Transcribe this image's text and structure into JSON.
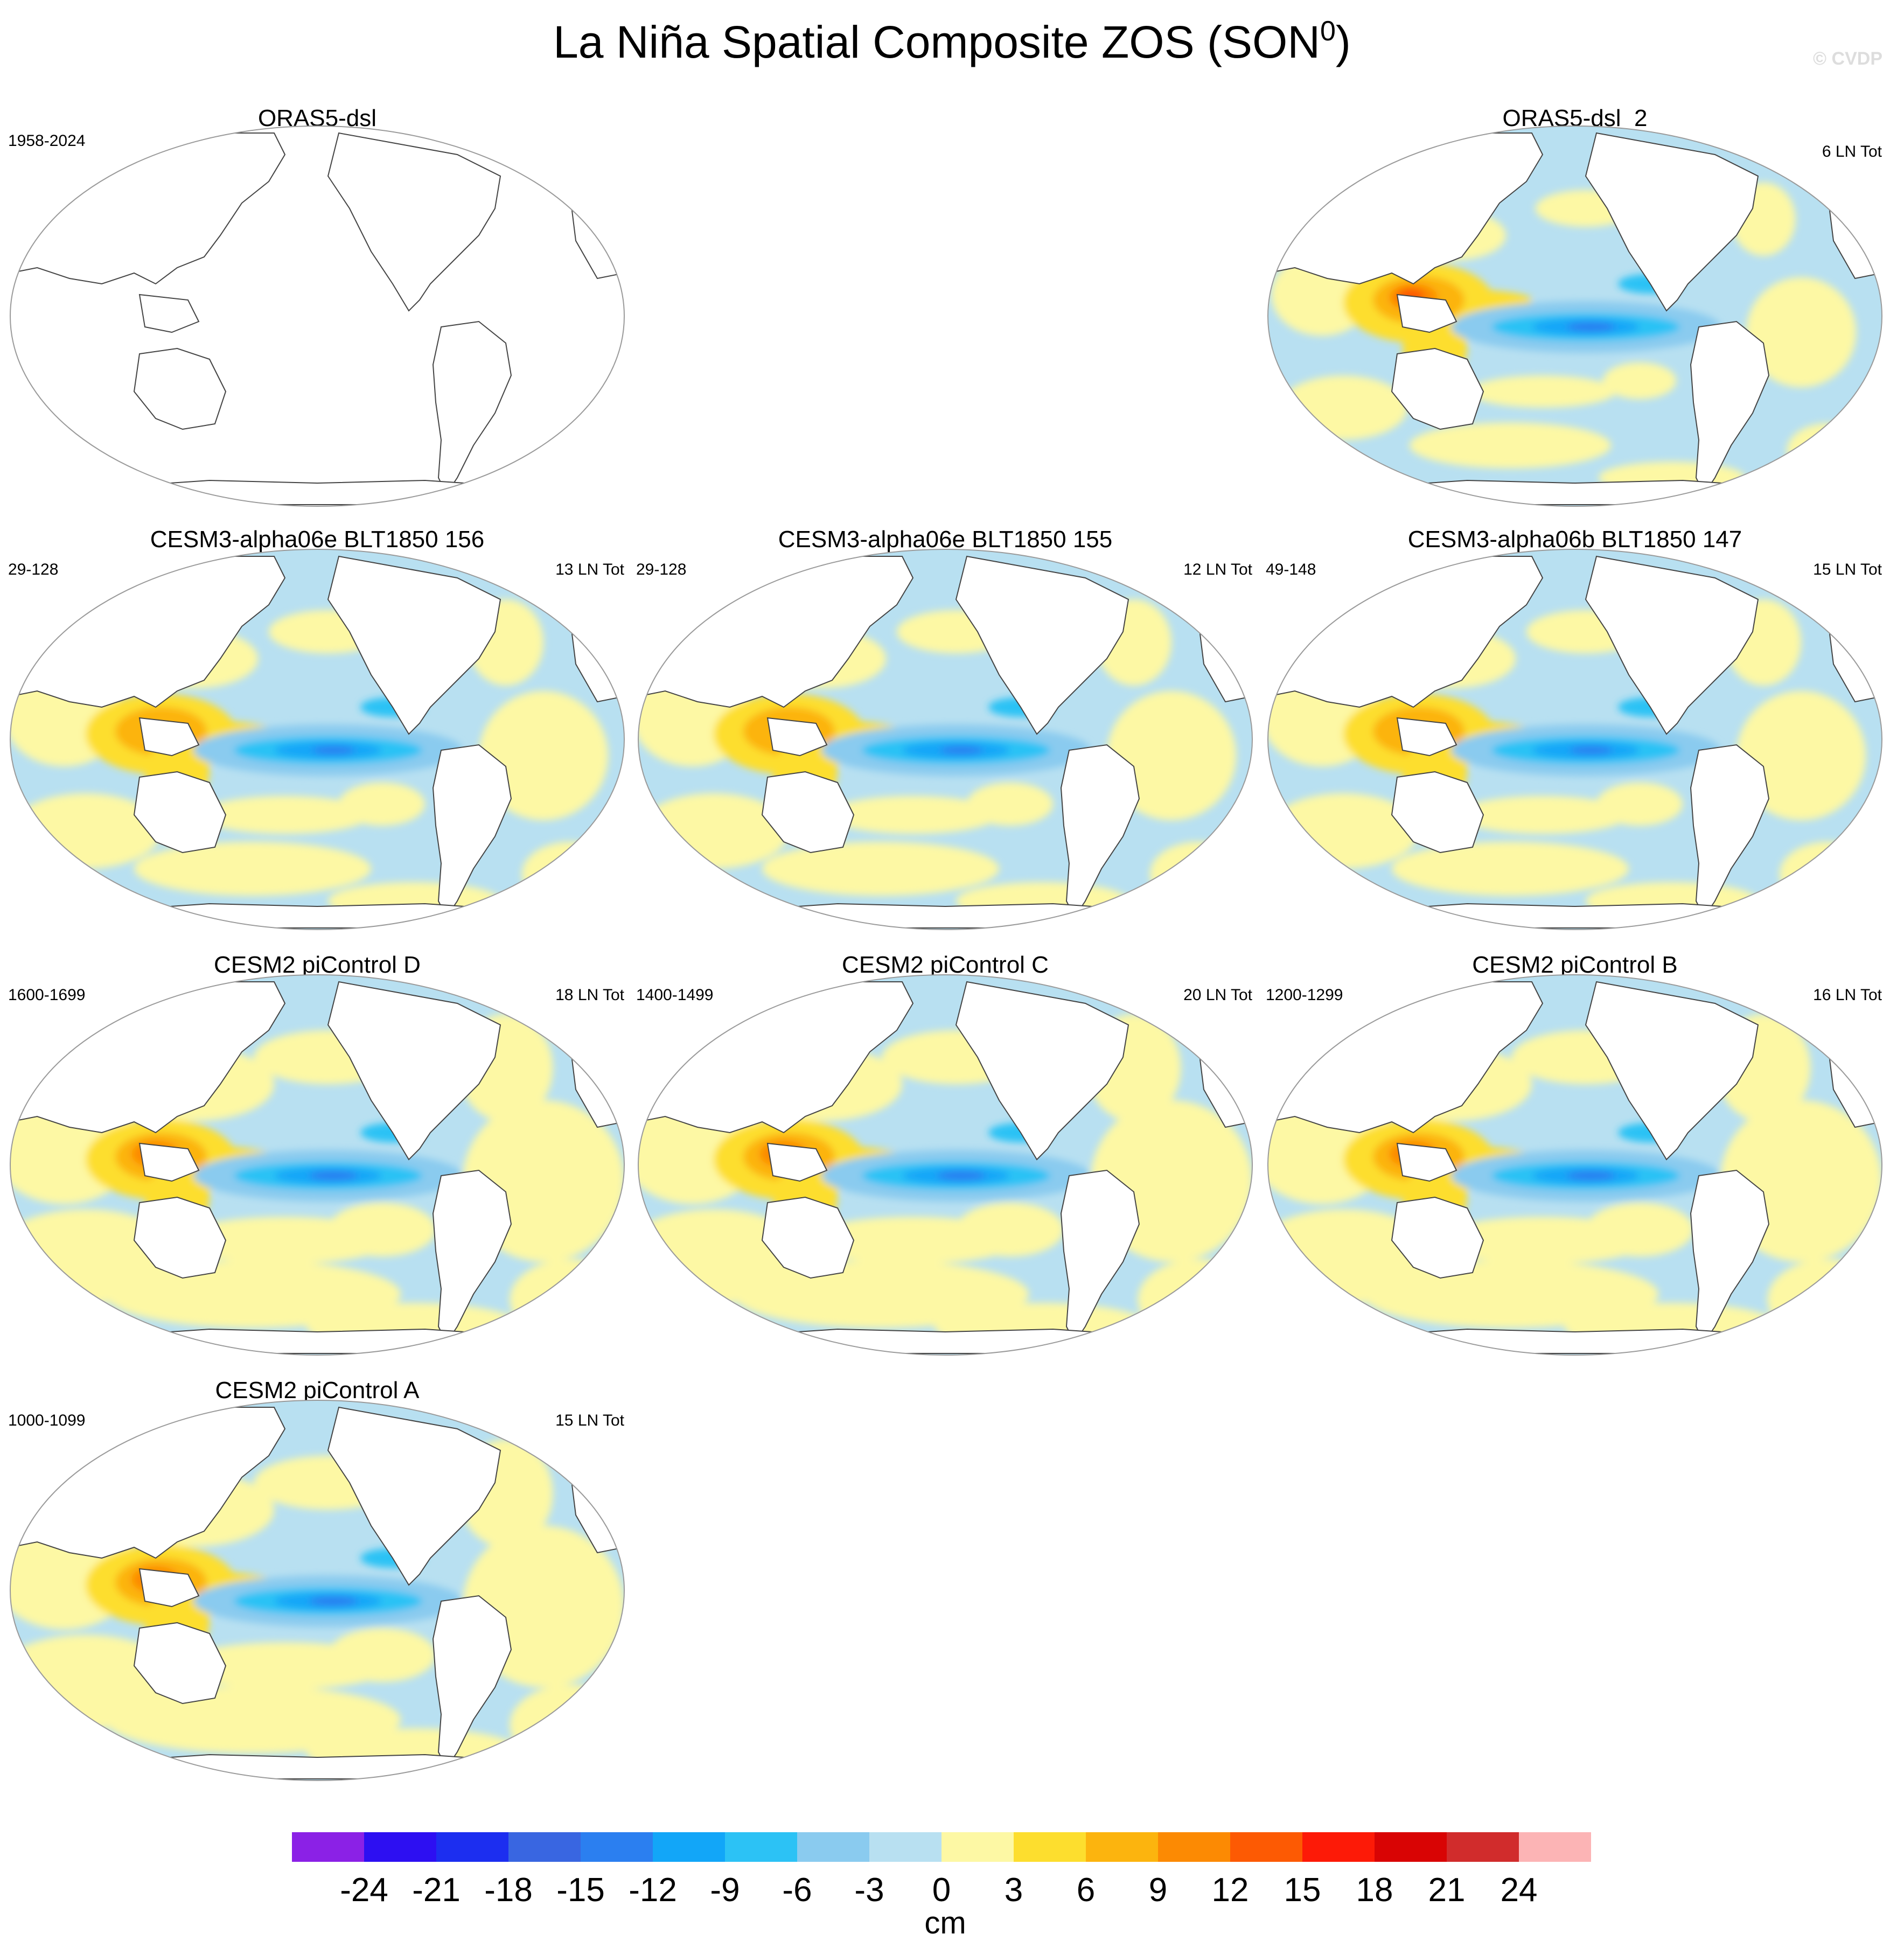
{
  "title": "La Niña Spatial Composite ZOS (SON",
  "title_sup": "0",
  "title_close": ")",
  "watermark": "© CVDP",
  "chart_data": [
    {
      "type": "map",
      "title": "ORAS5-dsl",
      "left_note": "1958-2024",
      "right_note": "",
      "has_data": false,
      "pattern": "none"
    },
    {
      "type": "map",
      "title": "ORAS5-dsl_2",
      "left_note": "",
      "right_note": "6 LN Tot",
      "has_data": true,
      "pattern": "obs"
    },
    {
      "type": "map",
      "title": "CESM3-alpha06e BLT1850 156",
      "left_note": "29-128",
      "right_note": "13 LN Tot",
      "has_data": true,
      "pattern": "cesm3"
    },
    {
      "type": "map",
      "title": "CESM3-alpha06e BLT1850 155",
      "left_note": "29-128",
      "right_note": "12 LN Tot",
      "has_data": true,
      "pattern": "cesm3"
    },
    {
      "type": "map",
      "title": "CESM3-alpha06b BLT1850 147",
      "left_note": "49-148",
      "right_note": "15 LN Tot",
      "has_data": true,
      "pattern": "cesm3"
    },
    {
      "type": "map",
      "title": "CESM2 piControl D",
      "left_note": "1600-1699",
      "right_note": "18 LN Tot",
      "has_data": true,
      "pattern": "cesm2"
    },
    {
      "type": "map",
      "title": "CESM2 piControl C",
      "left_note": "1400-1499",
      "right_note": "20 LN Tot",
      "has_data": true,
      "pattern": "cesm2"
    },
    {
      "type": "map",
      "title": "CESM2 piControl B",
      "left_note": "1200-1299",
      "right_note": "16 LN Tot",
      "has_data": true,
      "pattern": "cesm2"
    },
    {
      "type": "map",
      "title": "CESM2 piControl A",
      "left_note": "1000-1099",
      "right_note": "15 LN Tot",
      "has_data": true,
      "pattern": "cesm2"
    }
  ],
  "colorbar": {
    "unit": "cm",
    "levels": [
      "-24",
      "-21",
      "-18",
      "-15",
      "-12",
      "-9",
      "-6",
      "-3",
      "0",
      "3",
      "6",
      "9",
      "12",
      "15",
      "18",
      "21",
      "24"
    ],
    "colors": [
      "#8b21e6",
      "#2d0ff2",
      "#1c2ef0",
      "#3966e1",
      "#2b7ff0",
      "#12a6f8",
      "#2cc2f5",
      "#8acbef",
      "#b8e0f1",
      "#fdf8a4",
      "#fdde2e",
      "#fcb40e",
      "#fc8a03",
      "#fd5a03",
      "#fd1a07",
      "#d90404",
      "#d12c2c",
      "#fcb4b5"
    ]
  }
}
